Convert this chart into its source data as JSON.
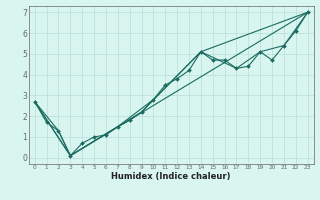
{
  "title": "",
  "xlabel": "Humidex (Indice chaleur)",
  "ylabel": "",
  "bg_color": "#d8f5f0",
  "grid_color": "#b8ddd8",
  "line_color": "#1a6b60",
  "axes_color": "#666666",
  "xlim": [
    -0.5,
    23.5
  ],
  "ylim": [
    -0.3,
    7.3
  ],
  "xticks": [
    0,
    1,
    2,
    3,
    4,
    5,
    6,
    7,
    8,
    9,
    10,
    11,
    12,
    13,
    14,
    15,
    16,
    17,
    18,
    19,
    20,
    21,
    22,
    23
  ],
  "yticks": [
    0,
    1,
    2,
    3,
    4,
    5,
    6,
    7
  ],
  "line1_x": [
    0,
    1,
    2,
    3,
    4,
    5,
    6,
    7,
    8,
    9,
    10,
    11,
    12,
    13,
    14,
    15,
    16,
    17,
    18,
    19,
    20,
    21,
    22,
    23
  ],
  "line1_y": [
    2.7,
    1.7,
    1.3,
    0.1,
    0.7,
    1.0,
    1.1,
    1.5,
    1.8,
    2.2,
    2.8,
    3.5,
    3.8,
    4.2,
    5.1,
    4.7,
    4.7,
    4.3,
    4.4,
    5.1,
    4.7,
    5.4,
    6.1,
    7.0
  ],
  "line2_x": [
    0,
    2,
    3,
    23
  ],
  "line2_y": [
    2.7,
    1.3,
    0.1,
    7.0
  ],
  "line3_x": [
    0,
    3,
    9,
    14,
    23
  ],
  "line3_y": [
    2.7,
    0.1,
    2.2,
    5.1,
    7.0
  ],
  "line4_x": [
    0,
    3,
    7,
    10,
    14,
    17,
    19,
    21,
    23
  ],
  "line4_y": [
    2.7,
    0.1,
    1.5,
    2.8,
    5.1,
    4.3,
    5.1,
    5.4,
    7.0
  ],
  "xlabel_fontsize": 6.0,
  "tick_fontsize_x": 4.2,
  "tick_fontsize_y": 5.5
}
